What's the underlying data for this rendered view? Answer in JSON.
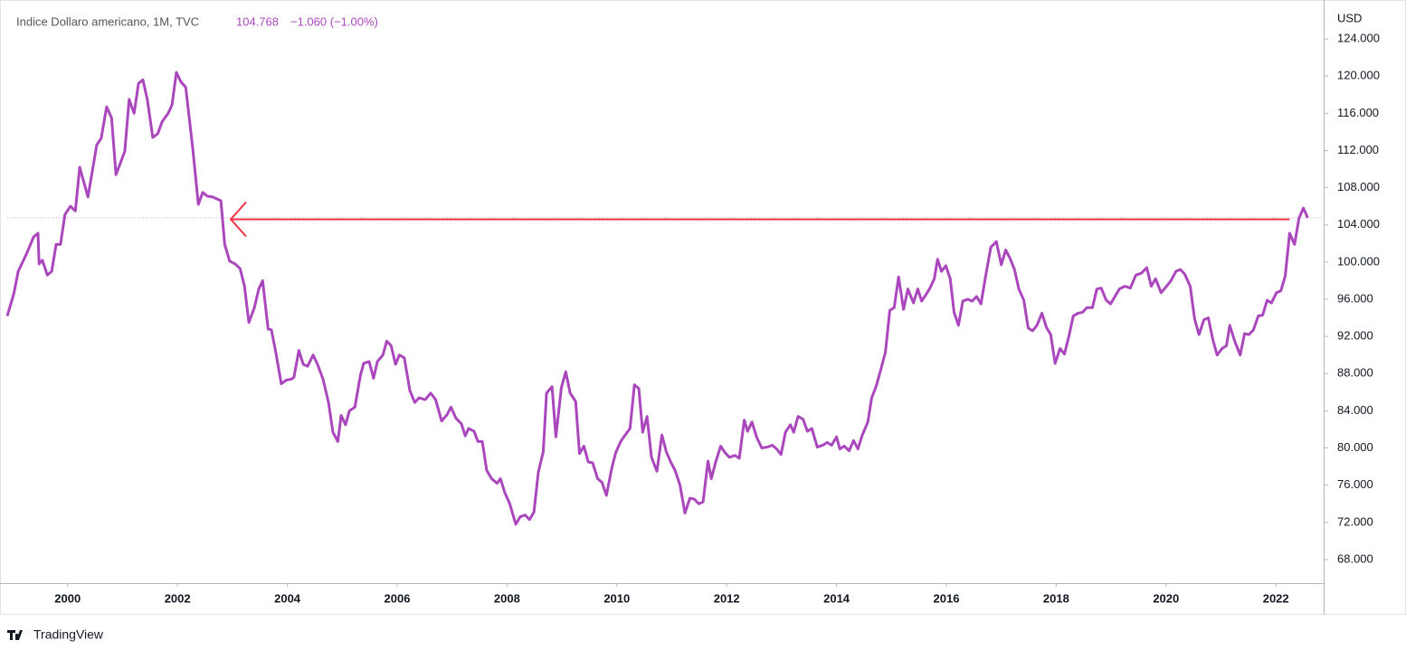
{
  "chart_data": {
    "type": "line",
    "legend": {
      "symbol": "Indice Dollaro americano, 1M, TVC",
      "price": 104.768,
      "change": "−1.060 (−1.00%)"
    },
    "axis_unit": "USD",
    "brand": "TradingView",
    "arrow": {
      "value": 104.6,
      "x": [
        2022.25,
        2002.97
      ],
      "color": "#f23645"
    },
    "price_line": true,
    "xlim": [
      1998.9,
      2022.87
    ],
    "xticks": [
      2000,
      2002,
      2004,
      2006,
      2008,
      2010,
      2012,
      2014,
      2016,
      2018,
      2020,
      2022
    ],
    "ylim": [
      65.47,
      127.7
    ],
    "yticks": [
      {
        "value": 68,
        "label": "68.000"
      },
      {
        "value": 72,
        "label": "72.000"
      },
      {
        "value": 76,
        "label": "76.000"
      },
      {
        "value": 80,
        "label": "80.000"
      },
      {
        "value": 84,
        "label": "84.000"
      },
      {
        "value": 88,
        "label": "88.000"
      },
      {
        "value": 92,
        "label": "92.000"
      },
      {
        "value": 96,
        "label": "96.000"
      },
      {
        "value": 100,
        "label": "100.000"
      },
      {
        "value": 104,
        "label": "104.000"
      },
      {
        "value": 108,
        "label": "108.000"
      },
      {
        "value": 112,
        "label": "112.000"
      },
      {
        "value": 116,
        "label": "116.000"
      },
      {
        "value": 120,
        "label": "120.000"
      },
      {
        "value": 124,
        "label": "124.000"
      }
    ],
    "x": [
      1998.9,
      1999.02,
      1999.1,
      1999.26,
      1999.38,
      1999.46,
      1999.48,
      1999.54,
      1999.63,
      1999.71,
      1999.79,
      1999.87,
      1999.95,
      2000.05,
      2000.14,
      2000.22,
      2000.37,
      2000.53,
      2000.61,
      2000.71,
      2000.8,
      2000.88,
      2001.04,
      2001.12,
      2001.21,
      2001.29,
      2001.37,
      2001.45,
      2001.55,
      2001.64,
      2001.72,
      2001.83,
      2001.9,
      2001.98,
      2002.06,
      2002.15,
      2002.28,
      2002.38,
      2002.46,
      2002.54,
      2002.64,
      2002.79,
      2002.86,
      2002.95,
      2003.05,
      2003.14,
      2003.22,
      2003.3,
      2003.4,
      2003.48,
      2003.55,
      2003.65,
      2003.71,
      2003.79,
      2003.89,
      2003.98,
      2004.07,
      2004.12,
      2004.21,
      2004.29,
      2004.37,
      2004.47,
      2004.55,
      2004.65,
      2004.75,
      2004.83,
      2004.92,
      2004.98,
      2005.06,
      2005.13,
      2005.23,
      2005.33,
      2005.39,
      2005.49,
      2005.57,
      2005.64,
      2005.74,
      2005.81,
      2005.89,
      2005.97,
      2006.04,
      2006.13,
      2006.23,
      2006.32,
      2006.4,
      2006.51,
      2006.61,
      2006.7,
      2006.81,
      2006.91,
      2006.98,
      2007.07,
      2007.17,
      2007.24,
      2007.3,
      2007.4,
      2007.47,
      2007.55,
      2007.63,
      2007.72,
      2007.82,
      2007.88,
      2007.96,
      2008.05,
      2008.16,
      2008.24,
      2008.33,
      2008.41,
      2008.49,
      2008.57,
      2008.66,
      2008.72,
      2008.82,
      2008.89,
      2008.99,
      2009.07,
      2009.15,
      2009.25,
      2009.32,
      2009.4,
      2009.48,
      2009.56,
      2009.65,
      2009.73,
      2009.81,
      2009.91,
      2009.98,
      2010.07,
      2010.14,
      2010.24,
      2010.32,
      2010.4,
      2010.47,
      2010.55,
      2010.63,
      2010.73,
      2010.82,
      2010.9,
      2010.98,
      2011.06,
      2011.15,
      2011.24,
      2011.33,
      2011.41,
      2011.49,
      2011.57,
      2011.66,
      2011.72,
      2011.8,
      2011.89,
      2011.97,
      2012.05,
      2012.15,
      2012.23,
      2012.32,
      2012.38,
      2012.46,
      2012.55,
      2012.64,
      2012.74,
      2012.83,
      2012.91,
      2012.99,
      2013.07,
      2013.16,
      2013.22,
      2013.3,
      2013.39,
      2013.47,
      2013.55,
      2013.65,
      2013.75,
      2013.83,
      2013.91,
      2014.0,
      2014.06,
      2014.14,
      2014.23,
      2014.31,
      2014.39,
      2014.47,
      2014.57,
      2014.64,
      2014.72,
      2014.8,
      2014.89,
      2014.97,
      2015.05,
      2015.13,
      2015.22,
      2015.3,
      2015.4,
      2015.48,
      2015.55,
      2015.63,
      2015.71,
      2015.78,
      2015.84,
      2015.91,
      2015.99,
      2016.07,
      2016.14,
      2016.22,
      2016.3,
      2016.39,
      2016.47,
      2016.55,
      2016.63,
      2016.73,
      2016.81,
      2016.91,
      2017.0,
      2017.08,
      2017.16,
      2017.24,
      2017.32,
      2017.41,
      2017.49,
      2017.57,
      2017.65,
      2017.74,
      2017.82,
      2017.9,
      2017.98,
      2018.07,
      2018.15,
      2018.23,
      2018.31,
      2018.4,
      2018.48,
      2018.56,
      2018.66,
      2018.74,
      2018.82,
      2018.91,
      2018.99,
      2019.07,
      2019.15,
      2019.25,
      2019.35,
      2019.45,
      2019.55,
      2019.65,
      2019.73,
      2019.81,
      2019.91,
      2020.01,
      2020.09,
      2020.18,
      2020.26,
      2020.34,
      2020.44,
      2020.52,
      2020.6,
      2020.69,
      2020.77,
      2020.85,
      2020.93,
      2021.02,
      2021.1,
      2021.16,
      2021.25,
      2021.35,
      2021.43,
      2021.51,
      2021.59,
      2021.68,
      2021.76,
      2021.84,
      2021.92,
      2022.01,
      2022.09,
      2022.17,
      2022.25,
      2022.34,
      2022.42,
      2022.5,
      2022.58
    ],
    "series": [
      {
        "name": "Indice Dollaro americano",
        "color": "#ab47bc",
        "values": [
          94.2,
          96.6,
          99.0,
          101.0,
          102.7,
          103.1,
          99.8,
          100.2,
          98.6,
          99.0,
          101.9,
          101.9,
          105.1,
          106.0,
          105.5,
          110.2,
          107.0,
          112.6,
          113.3,
          116.7,
          115.5,
          109.4,
          111.9,
          117.5,
          116.0,
          119.2,
          119.6,
          117.5,
          113.4,
          113.8,
          115.1,
          116.0,
          116.9,
          120.4,
          119.4,
          118.8,
          112.1,
          106.2,
          107.5,
          107.1,
          107.0,
          106.6,
          101.9,
          100.1,
          99.8,
          99.3,
          97.4,
          93.5,
          95.1,
          97.1,
          98.0,
          92.8,
          92.7,
          90.3,
          86.9,
          87.3,
          87.4,
          87.6,
          90.5,
          89.0,
          88.8,
          90.0,
          89.0,
          87.4,
          84.9,
          81.7,
          80.7,
          83.5,
          82.5,
          84.0,
          84.4,
          87.8,
          89.1,
          89.3,
          87.5,
          89.3,
          90.0,
          91.5,
          91.0,
          89.0,
          90.0,
          89.7,
          86.2,
          84.9,
          85.4,
          85.2,
          85.9,
          85.2,
          82.9,
          83.6,
          84.4,
          83.2,
          82.6,
          81.3,
          82.1,
          81.8,
          80.7,
          80.7,
          77.6,
          76.7,
          76.2,
          76.7,
          75.2,
          74.0,
          71.8,
          72.6,
          72.8,
          72.3,
          73.1,
          77.4,
          79.6,
          85.9,
          86.6,
          81.2,
          86.5,
          88.2,
          85.9,
          85.0,
          79.4,
          80.2,
          78.5,
          78.4,
          76.7,
          76.3,
          74.9,
          77.9,
          79.5,
          80.7,
          81.3,
          82.1,
          86.8,
          86.4,
          81.7,
          83.4,
          79.0,
          77.5,
          81.4,
          79.6,
          78.5,
          77.6,
          76.0,
          73.0,
          74.6,
          74.5,
          74.0,
          74.2,
          78.6,
          76.7,
          78.5,
          80.2,
          79.5,
          79.0,
          79.2,
          78.9,
          83.0,
          81.8,
          82.8,
          81.1,
          80.0,
          80.1,
          80.3,
          79.9,
          79.3,
          81.7,
          82.5,
          81.7,
          83.4,
          83.1,
          81.8,
          82.1,
          80.1,
          80.3,
          80.6,
          80.3,
          81.2,
          79.9,
          80.2,
          79.7,
          80.8,
          79.9,
          81.4,
          82.8,
          85.4,
          86.6,
          88.3,
          90.3,
          94.8,
          95.1,
          98.4,
          94.9,
          97.1,
          95.6,
          97.1,
          95.8,
          96.5,
          97.3,
          98.2,
          100.3,
          99.0,
          99.6,
          98.2,
          94.6,
          93.2,
          95.8,
          96.0,
          95.8,
          96.3,
          95.5,
          99.0,
          101.6,
          102.2,
          99.7,
          101.3,
          100.4,
          99.2,
          97.1,
          95.9,
          92.9,
          92.6,
          93.2,
          94.5,
          93.0,
          92.2,
          89.1,
          90.7,
          90.1,
          92.0,
          94.2,
          94.5,
          94.6,
          95.1,
          95.1,
          97.1,
          97.2,
          95.9,
          95.5,
          96.3,
          97.1,
          97.4,
          97.2,
          98.6,
          98.8,
          99.4,
          97.4,
          98.2,
          96.7,
          97.4,
          98.0,
          99.0,
          99.2,
          98.7,
          97.4,
          93.9,
          92.2,
          93.8,
          94.0,
          91.7,
          90.0,
          90.7,
          91.0,
          93.2,
          91.5,
          90.0,
          92.3,
          92.2,
          92.7,
          94.2,
          94.3,
          95.9,
          95.6,
          96.7,
          96.9,
          98.5,
          103.1,
          101.9,
          104.7,
          105.8,
          104.768
        ]
      }
    ]
  }
}
